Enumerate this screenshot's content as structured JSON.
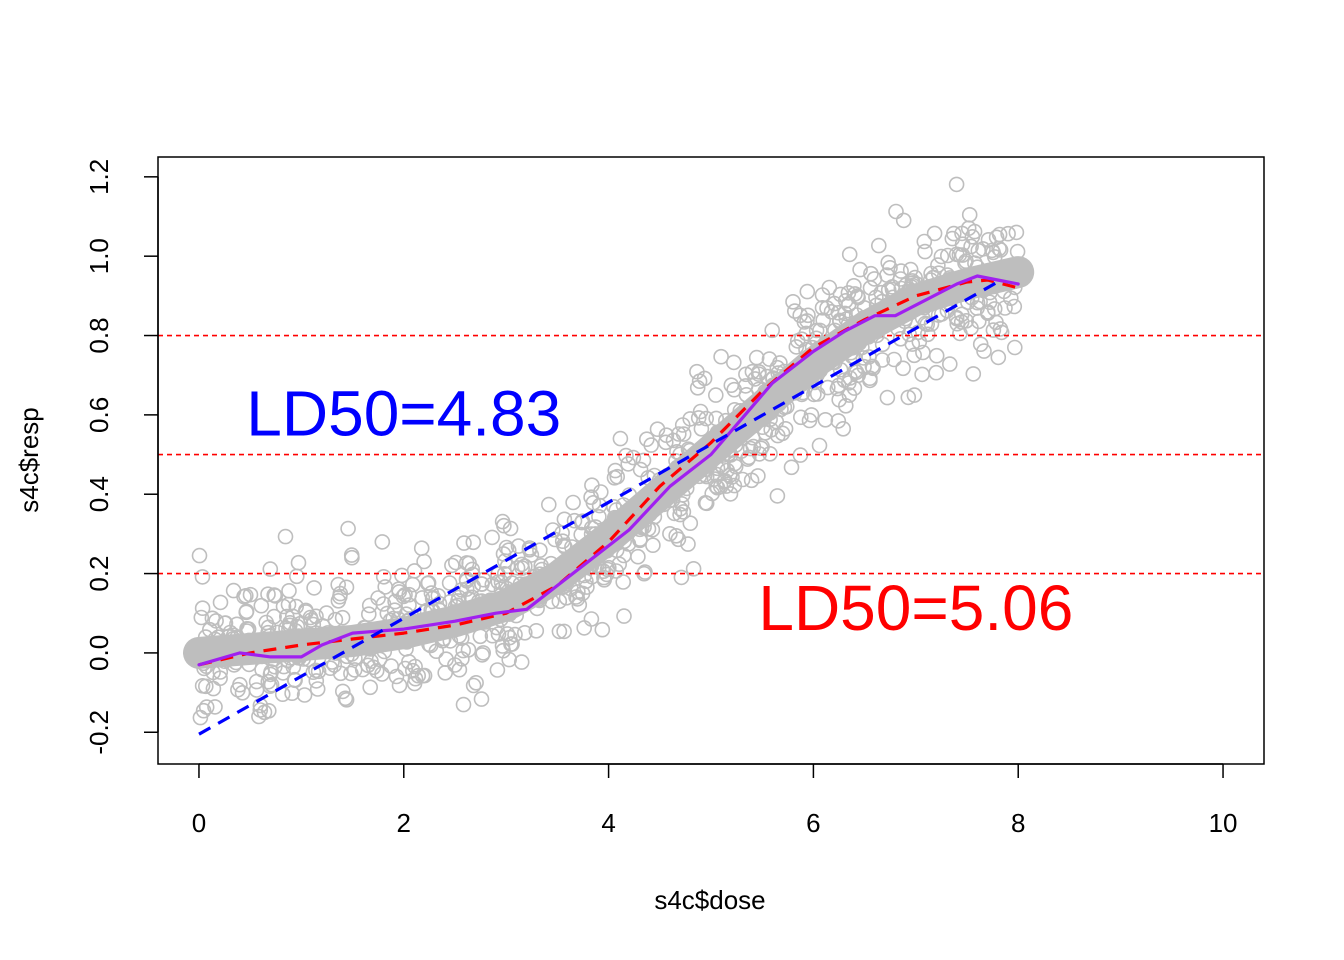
{
  "chart_data": {
    "type": "scatter",
    "xlabel": "s4c$dose",
    "ylabel": "s4c$resp",
    "xlim": [
      -0.4,
      10.4
    ],
    "ylim": [
      -0.28,
      1.25
    ],
    "x_ticks": [
      "0",
      "2",
      "4",
      "6",
      "8",
      "10"
    ],
    "y_ticks": [
      "-0.2",
      "0.0",
      "0.2",
      "0.4",
      "0.6",
      "0.8",
      "1.0",
      "1.2"
    ],
    "hlines": [
      0.2,
      0.5,
      0.8
    ],
    "hline_color": "#ff0000",
    "points_color": "#bebebe",
    "scatter_x_range": [
      0,
      8
    ],
    "series": [
      {
        "style": "thick-gray",
        "color": "#bebebe",
        "x": [
          0,
          0.5,
          1,
          1.5,
          2,
          2.5,
          3,
          3.5,
          4,
          4.5,
          5,
          5.5,
          6,
          6.5,
          7,
          7.5,
          8
        ],
        "y": [
          0.0,
          0.01,
          0.02,
          0.03,
          0.05,
          0.08,
          0.12,
          0.19,
          0.29,
          0.4,
          0.51,
          0.62,
          0.73,
          0.82,
          0.89,
          0.93,
          0.96
        ]
      },
      {
        "style": "dashed-red",
        "color": "#ff0000",
        "x": [
          0,
          0.5,
          1,
          1.5,
          2,
          2.5,
          3,
          3.5,
          4,
          4.5,
          5,
          5.5,
          6,
          6.5,
          7,
          7.5,
          7.7,
          8
        ],
        "y": [
          -0.03,
          0.0,
          0.02,
          0.035,
          0.05,
          0.07,
          0.1,
          0.17,
          0.28,
          0.42,
          0.53,
          0.66,
          0.77,
          0.84,
          0.9,
          0.935,
          0.94,
          0.92
        ]
      },
      {
        "style": "solid-purple",
        "color": "#a020f0",
        "x": [
          0,
          0.4,
          0.7,
          1,
          1.2,
          1.5,
          2,
          2.5,
          2.9,
          3.2,
          3.5,
          3.8,
          4.2,
          4.6,
          5,
          5.3,
          5.6,
          6,
          6.3,
          6.6,
          6.8,
          7.1,
          7.4,
          7.6,
          7.8,
          8
        ],
        "y": [
          -0.03,
          0.0,
          -0.01,
          -0.01,
          0.02,
          0.05,
          0.06,
          0.08,
          0.1,
          0.11,
          0.17,
          0.23,
          0.31,
          0.42,
          0.5,
          0.59,
          0.68,
          0.76,
          0.81,
          0.85,
          0.85,
          0.89,
          0.93,
          0.95,
          0.94,
          0.93
        ]
      },
      {
        "style": "dashed-blue",
        "color": "#0000ff",
        "x": [
          0,
          7.8
        ],
        "y": [
          -0.205,
          0.935
        ]
      }
    ],
    "annotations": [
      {
        "text": "LD50=4.83",
        "color": "#0000ff",
        "x": 2.0,
        "y": 0.59
      },
      {
        "text": "LD50=5.06",
        "color": "#ff0000",
        "x": 7.0,
        "y": 0.1
      }
    ]
  }
}
